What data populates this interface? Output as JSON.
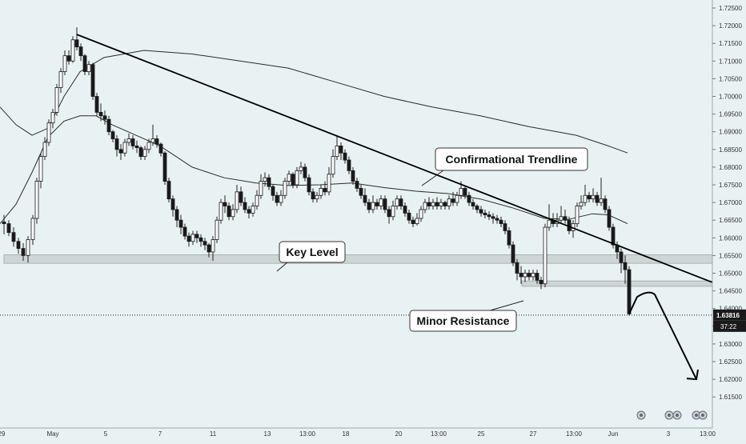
{
  "chart_data": {
    "type": "candlestick",
    "y_axis_labels": [
      "1.72500",
      "1.72000",
      "1.71500",
      "1.71000",
      "1.70500",
      "1.70000",
      "1.69500",
      "1.69000",
      "1.68500",
      "1.68000",
      "1.67500",
      "1.67000",
      "1.66500",
      "1.66000",
      "1.65500",
      "1.65000",
      "1.64500",
      "1.64000",
      "1.63500",
      "1.63000",
      "1.62500",
      "1.62000",
      "1.61500"
    ],
    "ylim": [
      1.6125,
      1.7265
    ],
    "x_axis_labels": [
      "29",
      "May",
      "5",
      "7",
      "11",
      "13",
      "13:00",
      "18",
      "20",
      "13:00",
      "25",
      "27",
      "13:00",
      "Jun",
      "3",
      "13:00"
    ],
    "current_price": "1.63816",
    "countdown": "37:22",
    "annotations": {
      "trendline": "Confirmational Trendline",
      "key_level": "Key Level",
      "minor_resistance": "Minor Resistance"
    },
    "levels": {
      "key_level_zone": [
        1.6528,
        1.6552
      ],
      "minor_resistance_zone": [
        1.6463,
        1.6478
      ]
    },
    "trendline": {
      "from": [
        96,
        1.7175
      ],
      "to": [
        932,
        1.6437
      ]
    },
    "moving_average_fast": [
      [
        0,
        1.664
      ],
      [
        20,
        1.6695
      ],
      [
        40,
        1.6785
      ],
      [
        60,
        1.6885
      ],
      [
        80,
        1.693
      ],
      [
        100,
        1.6945
      ],
      [
        120,
        1.6945
      ],
      [
        140,
        1.692
      ],
      [
        160,
        1.69
      ],
      [
        200,
        1.686
      ],
      [
        240,
        1.68
      ],
      [
        280,
        1.677
      ],
      [
        320,
        1.6755
      ],
      [
        360,
        1.6748
      ],
      [
        400,
        1.675
      ],
      [
        440,
        1.6755
      ],
      [
        480,
        1.6742
      ],
      [
        520,
        1.6732
      ],
      [
        560,
        1.6725
      ],
      [
        600,
        1.671
      ],
      [
        640,
        1.6685
      ],
      [
        680,
        1.6655
      ],
      [
        710,
        1.6652
      ],
      [
        740,
        1.6668
      ],
      [
        760,
        1.6665
      ],
      [
        784,
        1.664
      ]
    ],
    "moving_average_slow": [
      [
        0,
        1.697
      ],
      [
        20,
        1.692
      ],
      [
        40,
        1.689
      ],
      [
        60,
        1.691
      ],
      [
        80,
        1.7
      ],
      [
        100,
        1.707
      ],
      [
        130,
        1.711
      ],
      [
        180,
        1.713
      ],
      [
        240,
        1.712
      ],
      [
        300,
        1.71
      ],
      [
        360,
        1.708
      ],
      [
        420,
        1.704
      ],
      [
        480,
        1.7
      ],
      [
        540,
        1.697
      ],
      [
        600,
        1.6945
      ],
      [
        660,
        1.6915
      ],
      [
        720,
        1.689
      ],
      [
        760,
        1.686
      ],
      [
        784,
        1.684
      ]
    ],
    "projection": [
      [
        786,
        1.6385
      ],
      [
        796,
        1.6433
      ],
      [
        818,
        1.644
      ],
      [
        870,
        1.62
      ]
    ],
    "candles": [
      [
        5,
        1.6645,
        1.664,
        1.6665,
        1.661
      ],
      [
        11,
        1.664,
        1.6615,
        1.665,
        1.6605
      ],
      [
        17,
        1.6615,
        1.659,
        1.663,
        1.6575
      ],
      [
        23,
        1.659,
        1.657,
        1.66,
        1.6555
      ],
      [
        29,
        1.657,
        1.655,
        1.6585,
        1.6535
      ],
      [
        35,
        1.655,
        1.6595,
        1.6605,
        1.653
      ],
      [
        41,
        1.6595,
        1.6655,
        1.6665,
        1.658
      ],
      [
        46,
        1.6655,
        1.676,
        1.677,
        1.664
      ],
      [
        51,
        1.676,
        1.683,
        1.684,
        1.674
      ],
      [
        56,
        1.683,
        1.687,
        1.6885,
        1.682
      ],
      [
        61,
        1.687,
        1.6925,
        1.6935,
        1.686
      ],
      [
        66,
        1.6925,
        1.6955,
        1.6965,
        1.691
      ],
      [
        71,
        1.6955,
        1.7025,
        1.7035,
        1.6945
      ],
      [
        76,
        1.7025,
        1.707,
        1.708,
        1.701
      ],
      [
        81,
        1.707,
        1.7115,
        1.713,
        1.706
      ],
      [
        86,
        1.7115,
        1.71,
        1.713,
        1.709
      ],
      [
        91,
        1.71,
        1.716,
        1.717,
        1.7095
      ],
      [
        96,
        1.716,
        1.714,
        1.7195,
        1.713
      ],
      [
        101,
        1.714,
        1.7115,
        1.715,
        1.71
      ],
      [
        106,
        1.7115,
        1.707,
        1.712,
        1.706
      ],
      [
        111,
        1.707,
        1.709,
        1.71,
        1.706
      ],
      [
        116,
        1.709,
        1.7,
        1.7095,
        1.699
      ],
      [
        121,
        1.7,
        1.6955,
        1.701,
        1.6945
      ],
      [
        126,
        1.6955,
        1.6945,
        1.698,
        1.693
      ],
      [
        131,
        1.6945,
        1.6935,
        1.696,
        1.692
      ],
      [
        136,
        1.6935,
        1.69,
        1.6945,
        1.689
      ],
      [
        141,
        1.69,
        1.688,
        1.6905,
        1.687
      ],
      [
        146,
        1.688,
        1.685,
        1.689,
        1.683
      ],
      [
        151,
        1.685,
        1.684,
        1.6865,
        1.682
      ],
      [
        156,
        1.684,
        1.687,
        1.688,
        1.683
      ],
      [
        161,
        1.687,
        1.688,
        1.6895,
        1.686
      ],
      [
        166,
        1.688,
        1.686,
        1.689,
        1.685
      ],
      [
        171,
        1.686,
        1.6855,
        1.6875,
        1.684
      ],
      [
        176,
        1.6855,
        1.683,
        1.686,
        1.682
      ],
      [
        181,
        1.683,
        1.685,
        1.686,
        1.682
      ],
      [
        186,
        1.685,
        1.687,
        1.688,
        1.684
      ],
      [
        191,
        1.687,
        1.688,
        1.692,
        1.686
      ],
      [
        196,
        1.688,
        1.6865,
        1.689,
        1.6855
      ],
      [
        201,
        1.6865,
        1.684,
        1.687,
        1.683
      ],
      [
        206,
        1.684,
        1.676,
        1.6845,
        1.675
      ],
      [
        211,
        1.676,
        1.671,
        1.677,
        1.67
      ],
      [
        216,
        1.671,
        1.668,
        1.672,
        1.666
      ],
      [
        221,
        1.668,
        1.665,
        1.669,
        1.663
      ],
      [
        226,
        1.665,
        1.663,
        1.6665,
        1.661
      ],
      [
        231,
        1.663,
        1.6605,
        1.664,
        1.6595
      ],
      [
        236,
        1.6605,
        1.659,
        1.6615,
        1.6575
      ],
      [
        241,
        1.659,
        1.661,
        1.662,
        1.658
      ],
      [
        246,
        1.661,
        1.66,
        1.662,
        1.6585
      ],
      [
        251,
        1.66,
        1.659,
        1.661,
        1.6575
      ],
      [
        256,
        1.659,
        1.658,
        1.66,
        1.6565
      ],
      [
        261,
        1.658,
        1.656,
        1.6585,
        1.6545
      ],
      [
        266,
        1.656,
        1.6595,
        1.6605,
        1.6535
      ],
      [
        271,
        1.6595,
        1.665,
        1.666,
        1.6585
      ],
      [
        276,
        1.665,
        1.67,
        1.671,
        1.664
      ],
      [
        281,
        1.67,
        1.669,
        1.672,
        1.667
      ],
      [
        286,
        1.669,
        1.666,
        1.67,
        1.665
      ],
      [
        291,
        1.666,
        1.668,
        1.6695,
        1.665
      ],
      [
        296,
        1.668,
        1.673,
        1.675,
        1.667
      ],
      [
        301,
        1.673,
        1.67,
        1.6745,
        1.669
      ],
      [
        306,
        1.67,
        1.668,
        1.6715,
        1.667
      ],
      [
        311,
        1.668,
        1.667,
        1.669,
        1.6655
      ],
      [
        316,
        1.667,
        1.669,
        1.67,
        1.666
      ],
      [
        321,
        1.669,
        1.672,
        1.6735,
        1.668
      ],
      [
        326,
        1.672,
        1.676,
        1.678,
        1.671
      ],
      [
        331,
        1.676,
        1.677,
        1.6785,
        1.6745
      ],
      [
        336,
        1.677,
        1.6745,
        1.678,
        1.6735
      ],
      [
        341,
        1.6745,
        1.672,
        1.675,
        1.6705
      ],
      [
        346,
        1.672,
        1.67,
        1.673,
        1.669
      ],
      [
        351,
        1.67,
        1.672,
        1.6735,
        1.669
      ],
      [
        356,
        1.672,
        1.676,
        1.677,
        1.671
      ],
      [
        361,
        1.676,
        1.678,
        1.679,
        1.675
      ],
      [
        366,
        1.678,
        1.675,
        1.6785,
        1.674
      ],
      [
        371,
        1.675,
        1.679,
        1.68,
        1.674
      ],
      [
        376,
        1.679,
        1.68,
        1.6815,
        1.678
      ],
      [
        381,
        1.68,
        1.677,
        1.681,
        1.676
      ],
      [
        386,
        1.677,
        1.673,
        1.678,
        1.672
      ],
      [
        391,
        1.673,
        1.671,
        1.674,
        1.67
      ],
      [
        396,
        1.671,
        1.672,
        1.673,
        1.67
      ],
      [
        401,
        1.672,
        1.674,
        1.675,
        1.671
      ],
      [
        406,
        1.674,
        1.673,
        1.676,
        1.672
      ],
      [
        411,
        1.673,
        1.678,
        1.68,
        1.672
      ],
      [
        416,
        1.678,
        1.683,
        1.685,
        1.677
      ],
      [
        421,
        1.683,
        1.686,
        1.689,
        1.682
      ],
      [
        426,
        1.686,
        1.684,
        1.687,
        1.682
      ],
      [
        431,
        1.684,
        1.682,
        1.685,
        1.681
      ],
      [
        436,
        1.682,
        1.679,
        1.683,
        1.678
      ],
      [
        441,
        1.679,
        1.676,
        1.68,
        1.675
      ],
      [
        446,
        1.676,
        1.674,
        1.677,
        1.673
      ],
      [
        451,
        1.674,
        1.672,
        1.675,
        1.671
      ],
      [
        456,
        1.672,
        1.67,
        1.674,
        1.669
      ],
      [
        461,
        1.67,
        1.668,
        1.671,
        1.667
      ],
      [
        466,
        1.668,
        1.67,
        1.672,
        1.667
      ],
      [
        471,
        1.67,
        1.669,
        1.671,
        1.668
      ],
      [
        476,
        1.669,
        1.671,
        1.672,
        1.668
      ],
      [
        481,
        1.671,
        1.668,
        1.672,
        1.667
      ],
      [
        486,
        1.668,
        1.666,
        1.669,
        1.664
      ],
      [
        491,
        1.666,
        1.669,
        1.6705,
        1.665
      ],
      [
        496,
        1.669,
        1.671,
        1.672,
        1.668
      ],
      [
        501,
        1.671,
        1.669,
        1.672,
        1.668
      ],
      [
        506,
        1.669,
        1.667,
        1.67,
        1.666
      ],
      [
        511,
        1.667,
        1.665,
        1.668,
        1.664
      ],
      [
        516,
        1.665,
        1.664,
        1.666,
        1.663
      ],
      [
        521,
        1.664,
        1.6655,
        1.667,
        1.6635
      ],
      [
        526,
        1.6655,
        1.668,
        1.669,
        1.6645
      ],
      [
        531,
        1.668,
        1.67,
        1.671,
        1.667
      ],
      [
        536,
        1.67,
        1.669,
        1.6715,
        1.668
      ],
      [
        541,
        1.669,
        1.67,
        1.671,
        1.668
      ],
      [
        546,
        1.67,
        1.669,
        1.6715,
        1.668
      ],
      [
        551,
        1.669,
        1.67,
        1.671,
        1.668
      ],
      [
        556,
        1.67,
        1.669,
        1.6705,
        1.668
      ],
      [
        561,
        1.669,
        1.671,
        1.672,
        1.668
      ],
      [
        566,
        1.671,
        1.67,
        1.673,
        1.669
      ],
      [
        571,
        1.67,
        1.672,
        1.673,
        1.669
      ],
      [
        576,
        1.672,
        1.674,
        1.676,
        1.671
      ],
      [
        581,
        1.674,
        1.672,
        1.6745,
        1.671
      ],
      [
        586,
        1.672,
        1.67,
        1.673,
        1.669
      ],
      [
        591,
        1.67,
        1.669,
        1.671,
        1.668
      ],
      [
        596,
        1.669,
        1.668,
        1.6695,
        1.667
      ],
      [
        601,
        1.668,
        1.667,
        1.669,
        1.666
      ],
      [
        606,
        1.667,
        1.6665,
        1.668,
        1.6655
      ],
      [
        611,
        1.6665,
        1.666,
        1.6675,
        1.665
      ],
      [
        616,
        1.666,
        1.6655,
        1.667,
        1.664
      ],
      [
        621,
        1.6655,
        1.665,
        1.6665,
        1.664
      ],
      [
        626,
        1.665,
        1.664,
        1.666,
        1.663
      ],
      [
        631,
        1.664,
        1.662,
        1.665,
        1.661
      ],
      [
        636,
        1.662,
        1.658,
        1.663,
        1.657
      ],
      [
        641,
        1.658,
        1.653,
        1.659,
        1.652
      ],
      [
        646,
        1.653,
        1.65,
        1.654,
        1.648
      ],
      [
        651,
        1.65,
        1.649,
        1.652,
        1.647
      ],
      [
        656,
        1.649,
        1.65,
        1.651,
        1.6475
      ],
      [
        661,
        1.65,
        1.649,
        1.651,
        1.648
      ],
      [
        666,
        1.649,
        1.65,
        1.651,
        1.648
      ],
      [
        671,
        1.65,
        1.648,
        1.651,
        1.647
      ],
      [
        676,
        1.648,
        1.647,
        1.649,
        1.6455
      ],
      [
        681,
        1.647,
        1.663,
        1.664,
        1.646
      ],
      [
        686,
        1.663,
        1.665,
        1.6695,
        1.662
      ],
      [
        691,
        1.665,
        1.664,
        1.667,
        1.663
      ],
      [
        696,
        1.664,
        1.665,
        1.667,
        1.663
      ],
      [
        701,
        1.665,
        1.666,
        1.669,
        1.664
      ],
      [
        706,
        1.666,
        1.665,
        1.668,
        1.664
      ],
      [
        711,
        1.665,
        1.662,
        1.666,
        1.661
      ],
      [
        716,
        1.662,
        1.664,
        1.665,
        1.66
      ],
      [
        721,
        1.664,
        1.669,
        1.67,
        1.663
      ],
      [
        726,
        1.669,
        1.67,
        1.672,
        1.668
      ],
      [
        731,
        1.67,
        1.672,
        1.675,
        1.669
      ],
      [
        736,
        1.672,
        1.671,
        1.673,
        1.67
      ],
      [
        741,
        1.671,
        1.672,
        1.674,
        1.67
      ],
      [
        746,
        1.672,
        1.67,
        1.673,
        1.669
      ],
      [
        751,
        1.67,
        1.671,
        1.677,
        1.669
      ],
      [
        756,
        1.671,
        1.668,
        1.672,
        1.667
      ],
      [
        761,
        1.668,
        1.663,
        1.669,
        1.662
      ],
      [
        766,
        1.663,
        1.658,
        1.664,
        1.657
      ],
      [
        771,
        1.658,
        1.656,
        1.659,
        1.654
      ],
      [
        776,
        1.656,
        1.653,
        1.657,
        1.65
      ],
      [
        781,
        1.653,
        1.651,
        1.655,
        1.647
      ],
      [
        786,
        1.651,
        1.6385,
        1.652,
        1.638
      ]
    ]
  }
}
